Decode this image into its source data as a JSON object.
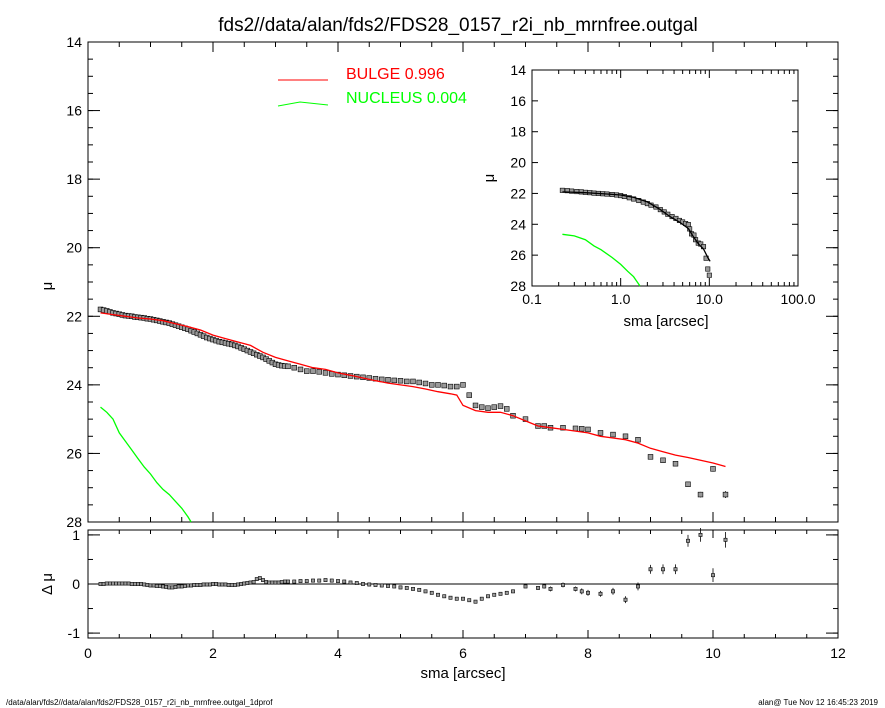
{
  "title": "fds2//data/alan/fds2/FDS28_0157_r2i_nb_mrnfree.outgal",
  "footer_left": "/data/alan/fds2//data/alan/fds2/FDS28_0157_r2i_nb_mrnfree.outgal_1dprof",
  "footer_right": "alan@  Tue Nov 12 16:45:23 2019",
  "colors": {
    "bulge": "#ff0000",
    "nucleus": "#00ff00",
    "data": "#000000",
    "zero_line": "#000000"
  },
  "chart_data": [
    {
      "type": "scatter",
      "id": "main-profile",
      "xlabel": "sma [arcsec]",
      "ylabel": "μ",
      "xlim": [
        0,
        12
      ],
      "ylim": [
        28,
        14
      ],
      "y_inverted": true,
      "x_ticks": [
        0,
        2,
        4,
        6,
        8,
        10,
        12
      ],
      "y_ticks": [
        14,
        16,
        18,
        20,
        22,
        24,
        26,
        28
      ],
      "legend": [
        {
          "name": "BULGE",
          "value": "0.996",
          "color": "#ff0000"
        },
        {
          "name": "NUCLEUS",
          "value": "0.004",
          "color": "#00ff00"
        }
      ],
      "legend_position": "top-center",
      "points": {
        "x": [
          0.2,
          0.25,
          0.3,
          0.35,
          0.4,
          0.45,
          0.5,
          0.55,
          0.6,
          0.65,
          0.7,
          0.75,
          0.8,
          0.85,
          0.9,
          0.95,
          1.0,
          1.05,
          1.1,
          1.15,
          1.2,
          1.25,
          1.3,
          1.35,
          1.4,
          1.45,
          1.5,
          1.55,
          1.6,
          1.65,
          1.7,
          1.75,
          1.8,
          1.85,
          1.9,
          1.95,
          2.0,
          2.05,
          2.1,
          2.15,
          2.2,
          2.25,
          2.3,
          2.35,
          2.4,
          2.45,
          2.5,
          2.55,
          2.6,
          2.65,
          2.7,
          2.75,
          2.8,
          2.85,
          2.9,
          2.95,
          3.0,
          3.05,
          3.1,
          3.15,
          3.2,
          3.3,
          3.4,
          3.5,
          3.6,
          3.7,
          3.8,
          3.9,
          4.0,
          4.1,
          4.2,
          4.3,
          4.4,
          4.5,
          4.6,
          4.7,
          4.8,
          4.9,
          5.0,
          5.1,
          5.2,
          5.3,
          5.4,
          5.5,
          5.6,
          5.7,
          5.8,
          5.9,
          6.0,
          6.1,
          6.2,
          6.3,
          6.4,
          6.5,
          6.6,
          6.7,
          6.8,
          7.0,
          7.2,
          7.3,
          7.4,
          7.6,
          7.8,
          7.9,
          8.0,
          8.2,
          8.4,
          8.6,
          8.8,
          9.0,
          9.2,
          9.4,
          9.6,
          9.8,
          10.0,
          10.2
        ],
        "y": [
          21.8,
          21.82,
          21.84,
          21.87,
          21.9,
          21.92,
          21.94,
          21.96,
          21.98,
          21.99,
          22.0,
          22.02,
          22.03,
          22.04,
          22.05,
          22.07,
          22.08,
          22.1,
          22.12,
          22.14,
          22.16,
          22.18,
          22.2,
          22.23,
          22.26,
          22.29,
          22.32,
          22.35,
          22.38,
          22.42,
          22.46,
          22.5,
          22.54,
          22.58,
          22.62,
          22.65,
          22.68,
          22.71,
          22.74,
          22.76,
          22.78,
          22.8,
          22.82,
          22.85,
          22.88,
          22.92,
          22.96,
          23.0,
          23.04,
          23.08,
          23.12,
          23.16,
          23.2,
          23.25,
          23.3,
          23.35,
          23.4,
          23.42,
          23.44,
          23.45,
          23.46,
          23.5,
          23.55,
          23.6,
          23.6,
          23.62,
          23.65,
          23.68,
          23.7,
          23.72,
          23.74,
          23.76,
          23.78,
          23.8,
          23.82,
          23.84,
          23.85,
          23.87,
          23.88,
          23.9,
          23.9,
          23.93,
          23.96,
          24.0,
          24.0,
          24.02,
          24.05,
          24.05,
          24.0,
          24.3,
          24.6,
          24.65,
          24.68,
          24.65,
          24.62,
          24.7,
          24.9,
          25.0,
          25.2,
          25.2,
          25.25,
          25.25,
          25.27,
          25.28,
          25.3,
          25.4,
          25.45,
          25.5,
          25.6,
          26.1,
          26.2,
          26.3,
          26.9,
          27.2,
          26.45,
          27.2
        ],
        "yerr": [
          0.01,
          0.01,
          0.01,
          0.01,
          0.01,
          0.01,
          0.01,
          0.01,
          0.01,
          0.01,
          0.01,
          0.01,
          0.01,
          0.01,
          0.01,
          0.01,
          0.01,
          0.01,
          0.01,
          0.01,
          0.01,
          0.01,
          0.01,
          0.01,
          0.01,
          0.01,
          0.01,
          0.01,
          0.01,
          0.01,
          0.01,
          0.01,
          0.01,
          0.01,
          0.01,
          0.01,
          0.01,
          0.01,
          0.01,
          0.01,
          0.01,
          0.01,
          0.01,
          0.01,
          0.01,
          0.01,
          0.01,
          0.01,
          0.01,
          0.01,
          0.01,
          0.01,
          0.01,
          0.01,
          0.01,
          0.01,
          0.01,
          0.01,
          0.01,
          0.01,
          0.01,
          0.01,
          0.01,
          0.01,
          0.01,
          0.01,
          0.01,
          0.01,
          0.01,
          0.01,
          0.01,
          0.01,
          0.01,
          0.01,
          0.01,
          0.01,
          0.01,
          0.01,
          0.01,
          0.01,
          0.01,
          0.01,
          0.01,
          0.01,
          0.01,
          0.01,
          0.01,
          0.01,
          0.01,
          0.01,
          0.01,
          0.01,
          0.01,
          0.01,
          0.01,
          0.01,
          0.01,
          0.02,
          0.02,
          0.02,
          0.02,
          0.02,
          0.02,
          0.02,
          0.02,
          0.02,
          0.02,
          0.03,
          0.03,
          0.04,
          0.04,
          0.05,
          0.06,
          0.08,
          0.08,
          0.1
        ]
      },
      "bulge_model": {
        "x": [
          0.2,
          0.4,
          0.6,
          0.8,
          1.0,
          1.2,
          1.4,
          1.6,
          1.8,
          2.0,
          2.2,
          2.4,
          2.6,
          2.8,
          3.0,
          3.2,
          3.4,
          3.6,
          3.8,
          4.0,
          4.2,
          4.4,
          4.6,
          4.8,
          5.0,
          5.2,
          5.4,
          5.6,
          5.8,
          5.9,
          6.0,
          6.2,
          6.4,
          6.6,
          6.8,
          7.0,
          7.2,
          7.4,
          7.6,
          7.8,
          8.0,
          8.2,
          8.4,
          8.6,
          8.8,
          9.0,
          9.2,
          9.4,
          9.6,
          9.8,
          10.0,
          10.2
        ],
        "y": [
          21.9,
          21.95,
          22.0,
          22.05,
          22.08,
          22.13,
          22.22,
          22.3,
          22.4,
          22.55,
          22.65,
          22.75,
          22.85,
          23.05,
          23.2,
          23.3,
          23.4,
          23.5,
          23.55,
          23.65,
          23.72,
          23.8,
          23.88,
          23.95,
          24.0,
          24.05,
          24.12,
          24.2,
          24.26,
          24.3,
          24.6,
          24.75,
          24.8,
          24.8,
          24.9,
          25.05,
          25.2,
          25.25,
          25.3,
          25.35,
          25.4,
          25.5,
          25.55,
          25.6,
          25.7,
          25.85,
          25.95,
          26.05,
          26.12,
          26.2,
          26.28,
          26.38
        ]
      },
      "nucleus_model": {
        "x": [
          0.2,
          0.3,
          0.4,
          0.5,
          0.6,
          0.7,
          0.8,
          0.9,
          1.0,
          1.1,
          1.2,
          1.3,
          1.4,
          1.5,
          1.6,
          1.65
        ],
        "y": [
          24.65,
          24.8,
          25.0,
          25.4,
          25.65,
          25.9,
          26.15,
          26.4,
          26.6,
          26.85,
          27.05,
          27.2,
          27.4,
          27.6,
          27.85,
          28.0
        ]
      }
    },
    {
      "type": "scatter",
      "id": "inset-profile",
      "xlabel": "sma [arcsec]",
      "ylabel": "μ",
      "x_scale": "log",
      "xlim": [
        0.1,
        100.0
      ],
      "ylim": [
        28,
        14
      ],
      "y_inverted": true,
      "x_ticks": [
        "0.1",
        "1.0",
        "10.0",
        "100.0"
      ],
      "y_ticks": [
        14,
        16,
        18,
        20,
        22,
        24,
        26,
        28
      ],
      "points": {
        "x": [
          0.22,
          0.25,
          0.28,
          0.32,
          0.36,
          0.4,
          0.45,
          0.5,
          0.56,
          0.63,
          0.7,
          0.8,
          0.9,
          1.0,
          1.1,
          1.25,
          1.4,
          1.6,
          1.8,
          2.0,
          2.2,
          2.5,
          2.8,
          3.1,
          3.4,
          3.8,
          4.2,
          4.6,
          5.0,
          5.4,
          5.8,
          6.0,
          6.3,
          6.7,
          7.0,
          7.5,
          8.0,
          8.6,
          9.2,
          9.6,
          10.0
        ],
        "y": [
          21.8,
          21.82,
          21.85,
          21.88,
          21.9,
          21.93,
          21.95,
          21.98,
          22.0,
          22.02,
          22.04,
          22.07,
          22.1,
          22.14,
          22.2,
          22.28,
          22.36,
          22.46,
          22.56,
          22.66,
          22.76,
          22.88,
          23.05,
          23.2,
          23.35,
          23.5,
          23.62,
          23.75,
          23.85,
          23.95,
          24.02,
          24.3,
          24.62,
          24.7,
          25.0,
          25.22,
          25.28,
          25.45,
          26.2,
          26.9,
          27.3
        ]
      },
      "bulge_model": {
        "x": [
          0.22,
          0.4,
          0.7,
          1.0,
          1.4,
          2.0,
          2.8,
          3.6,
          4.6,
          5.8,
          6.6,
          7.6,
          8.6,
          9.6,
          10.2
        ],
        "y": [
          21.9,
          21.95,
          22.04,
          22.1,
          22.25,
          22.55,
          23.05,
          23.5,
          23.85,
          24.28,
          24.8,
          25.3,
          25.6,
          26.15,
          26.4
        ]
      },
      "nucleus_model": {
        "x": [
          0.22,
          0.3,
          0.4,
          0.5,
          0.6,
          0.8,
          1.0,
          1.2,
          1.4,
          1.65
        ],
        "y": [
          24.65,
          24.75,
          25.0,
          25.4,
          25.65,
          26.15,
          26.6,
          27.05,
          27.4,
          28.0
        ]
      }
    },
    {
      "type": "scatter",
      "id": "residuals",
      "xlabel": "sma [arcsec]",
      "ylabel": "Δ μ",
      "xlim": [
        0,
        12
      ],
      "ylim": [
        -1.1,
        1.1
      ],
      "y_ticks": [
        -1,
        0,
        1
      ],
      "zero_line": true,
      "points": {
        "x": [
          0.2,
          0.25,
          0.3,
          0.35,
          0.4,
          0.45,
          0.5,
          0.55,
          0.6,
          0.65,
          0.7,
          0.75,
          0.8,
          0.85,
          0.9,
          0.95,
          1.0,
          1.05,
          1.1,
          1.15,
          1.2,
          1.25,
          1.3,
          1.35,
          1.4,
          1.45,
          1.5,
          1.55,
          1.6,
          1.65,
          1.7,
          1.75,
          1.8,
          1.85,
          1.9,
          1.95,
          2.0,
          2.05,
          2.1,
          2.15,
          2.2,
          2.25,
          2.3,
          2.35,
          2.4,
          2.45,
          2.5,
          2.55,
          2.6,
          2.65,
          2.7,
          2.75,
          2.8,
          2.85,
          2.9,
          2.95,
          3.0,
          3.05,
          3.1,
          3.15,
          3.2,
          3.3,
          3.4,
          3.5,
          3.6,
          3.7,
          3.8,
          3.9,
          4.0,
          4.1,
          4.2,
          4.3,
          4.4,
          4.5,
          4.6,
          4.7,
          4.8,
          4.9,
          5.0,
          5.1,
          5.2,
          5.3,
          5.4,
          5.5,
          5.6,
          5.7,
          5.8,
          5.9,
          6.0,
          6.1,
          6.2,
          6.3,
          6.4,
          6.5,
          6.6,
          6.7,
          6.8,
          7.0,
          7.2,
          7.3,
          7.4,
          7.6,
          7.8,
          7.9,
          8.0,
          8.2,
          8.4,
          8.6,
          8.8,
          9.0,
          9.2,
          9.4,
          9.6,
          9.8,
          10.0,
          10.2
        ],
        "y": [
          0.0,
          0.0,
          0.01,
          0.01,
          0.01,
          0.01,
          0.01,
          0.01,
          0.01,
          0.01,
          0.0,
          0.0,
          0.0,
          0.0,
          -0.01,
          -0.02,
          -0.03,
          -0.03,
          -0.04,
          -0.04,
          -0.05,
          -0.06,
          -0.07,
          -0.07,
          -0.06,
          -0.05,
          -0.05,
          -0.04,
          -0.03,
          -0.03,
          -0.02,
          -0.02,
          -0.02,
          -0.01,
          -0.01,
          -0.01,
          0.0,
          0.0,
          -0.01,
          -0.01,
          -0.01,
          -0.02,
          -0.02,
          -0.02,
          -0.01,
          0.0,
          0.01,
          0.02,
          0.03,
          0.04,
          0.1,
          0.12,
          0.08,
          0.04,
          0.03,
          0.03,
          0.03,
          0.03,
          0.04,
          0.05,
          0.05,
          0.05,
          0.06,
          0.06,
          0.07,
          0.07,
          0.08,
          0.07,
          0.06,
          0.05,
          0.03,
          0.02,
          0.0,
          -0.01,
          -0.02,
          -0.03,
          -0.04,
          -0.05,
          -0.07,
          -0.08,
          -0.1,
          -0.12,
          -0.15,
          -0.18,
          -0.22,
          -0.25,
          -0.28,
          -0.3,
          -0.3,
          -0.33,
          -0.36,
          -0.3,
          -0.25,
          -0.22,
          -0.2,
          -0.18,
          -0.15,
          -0.05,
          -0.08,
          -0.05,
          -0.1,
          -0.02,
          -0.1,
          -0.15,
          -0.18,
          -0.2,
          -0.15,
          -0.32,
          -0.05,
          0.3,
          0.3,
          0.3,
          0.88,
          1.0,
          0.18,
          0.9
        ],
        "yerr": [
          0.01,
          0.01,
          0.01,
          0.01,
          0.01,
          0.01,
          0.01,
          0.01,
          0.01,
          0.01,
          0.01,
          0.01,
          0.01,
          0.01,
          0.01,
          0.01,
          0.01,
          0.01,
          0.01,
          0.01,
          0.01,
          0.01,
          0.01,
          0.01,
          0.01,
          0.01,
          0.01,
          0.01,
          0.01,
          0.01,
          0.01,
          0.01,
          0.01,
          0.01,
          0.01,
          0.01,
          0.01,
          0.01,
          0.01,
          0.01,
          0.01,
          0.01,
          0.01,
          0.01,
          0.01,
          0.01,
          0.01,
          0.01,
          0.01,
          0.01,
          0.01,
          0.01,
          0.01,
          0.01,
          0.01,
          0.01,
          0.01,
          0.01,
          0.01,
          0.01,
          0.01,
          0.01,
          0.01,
          0.01,
          0.01,
          0.01,
          0.01,
          0.01,
          0.01,
          0.01,
          0.01,
          0.01,
          0.01,
          0.01,
          0.01,
          0.01,
          0.01,
          0.01,
          0.01,
          0.01,
          0.01,
          0.01,
          0.01,
          0.01,
          0.01,
          0.01,
          0.01,
          0.01,
          0.01,
          0.01,
          0.01,
          0.01,
          0.01,
          0.01,
          0.01,
          0.01,
          0.01,
          0.03,
          0.04,
          0.04,
          0.05,
          0.05,
          0.05,
          0.06,
          0.06,
          0.06,
          0.07,
          0.07,
          0.08,
          0.09,
          0.1,
          0.1,
          0.12,
          0.14,
          0.14,
          0.16
        ]
      }
    }
  ]
}
